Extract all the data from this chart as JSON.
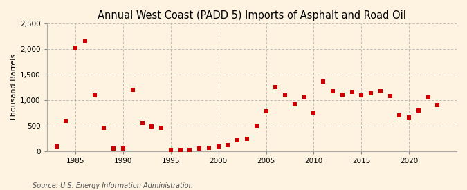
{
  "title": "Annual West Coast (PADD 5) Imports of Asphalt and Road Oil",
  "ylabel": "Thousand Barrels",
  "source": "Source: U.S. Energy Information Administration",
  "background_color": "#fdf3e0",
  "marker_color": "#cc0000",
  "years": [
    1983,
    1984,
    1985,
    1986,
    1987,
    1988,
    1989,
    1990,
    1991,
    1992,
    1993,
    1994,
    1995,
    1996,
    1997,
    1998,
    1999,
    2000,
    2001,
    2002,
    2003,
    2004,
    2005,
    2006,
    2007,
    2008,
    2009,
    2010,
    2011,
    2012,
    2013,
    2014,
    2015,
    2016,
    2017,
    2018,
    2019,
    2020,
    2021,
    2022,
    2023
  ],
  "values": [
    90,
    600,
    2020,
    2160,
    1100,
    460,
    50,
    60,
    1200,
    560,
    490,
    460,
    30,
    30,
    30,
    50,
    70,
    100,
    120,
    220,
    240,
    500,
    780,
    1250,
    1100,
    920,
    1070,
    760,
    1360,
    1180,
    1110,
    1160,
    1100,
    1130,
    1170,
    1080,
    700,
    660,
    800,
    1050,
    900
  ],
  "ylim": [
    0,
    2500
  ],
  "yticks": [
    0,
    500,
    1000,
    1500,
    2000,
    2500
  ],
  "ytick_labels": [
    "0",
    "500",
    "1,000",
    "1,500",
    "2,000",
    "2,500"
  ],
  "xlim": [
    1982,
    2025
  ],
  "xticks": [
    1985,
    1990,
    1995,
    2000,
    2005,
    2010,
    2015,
    2020
  ],
  "grid_color": "#aaaaaa",
  "title_fontsize": 10.5,
  "label_fontsize": 8,
  "tick_fontsize": 7.5,
  "source_fontsize": 7,
  "marker_size": 16
}
